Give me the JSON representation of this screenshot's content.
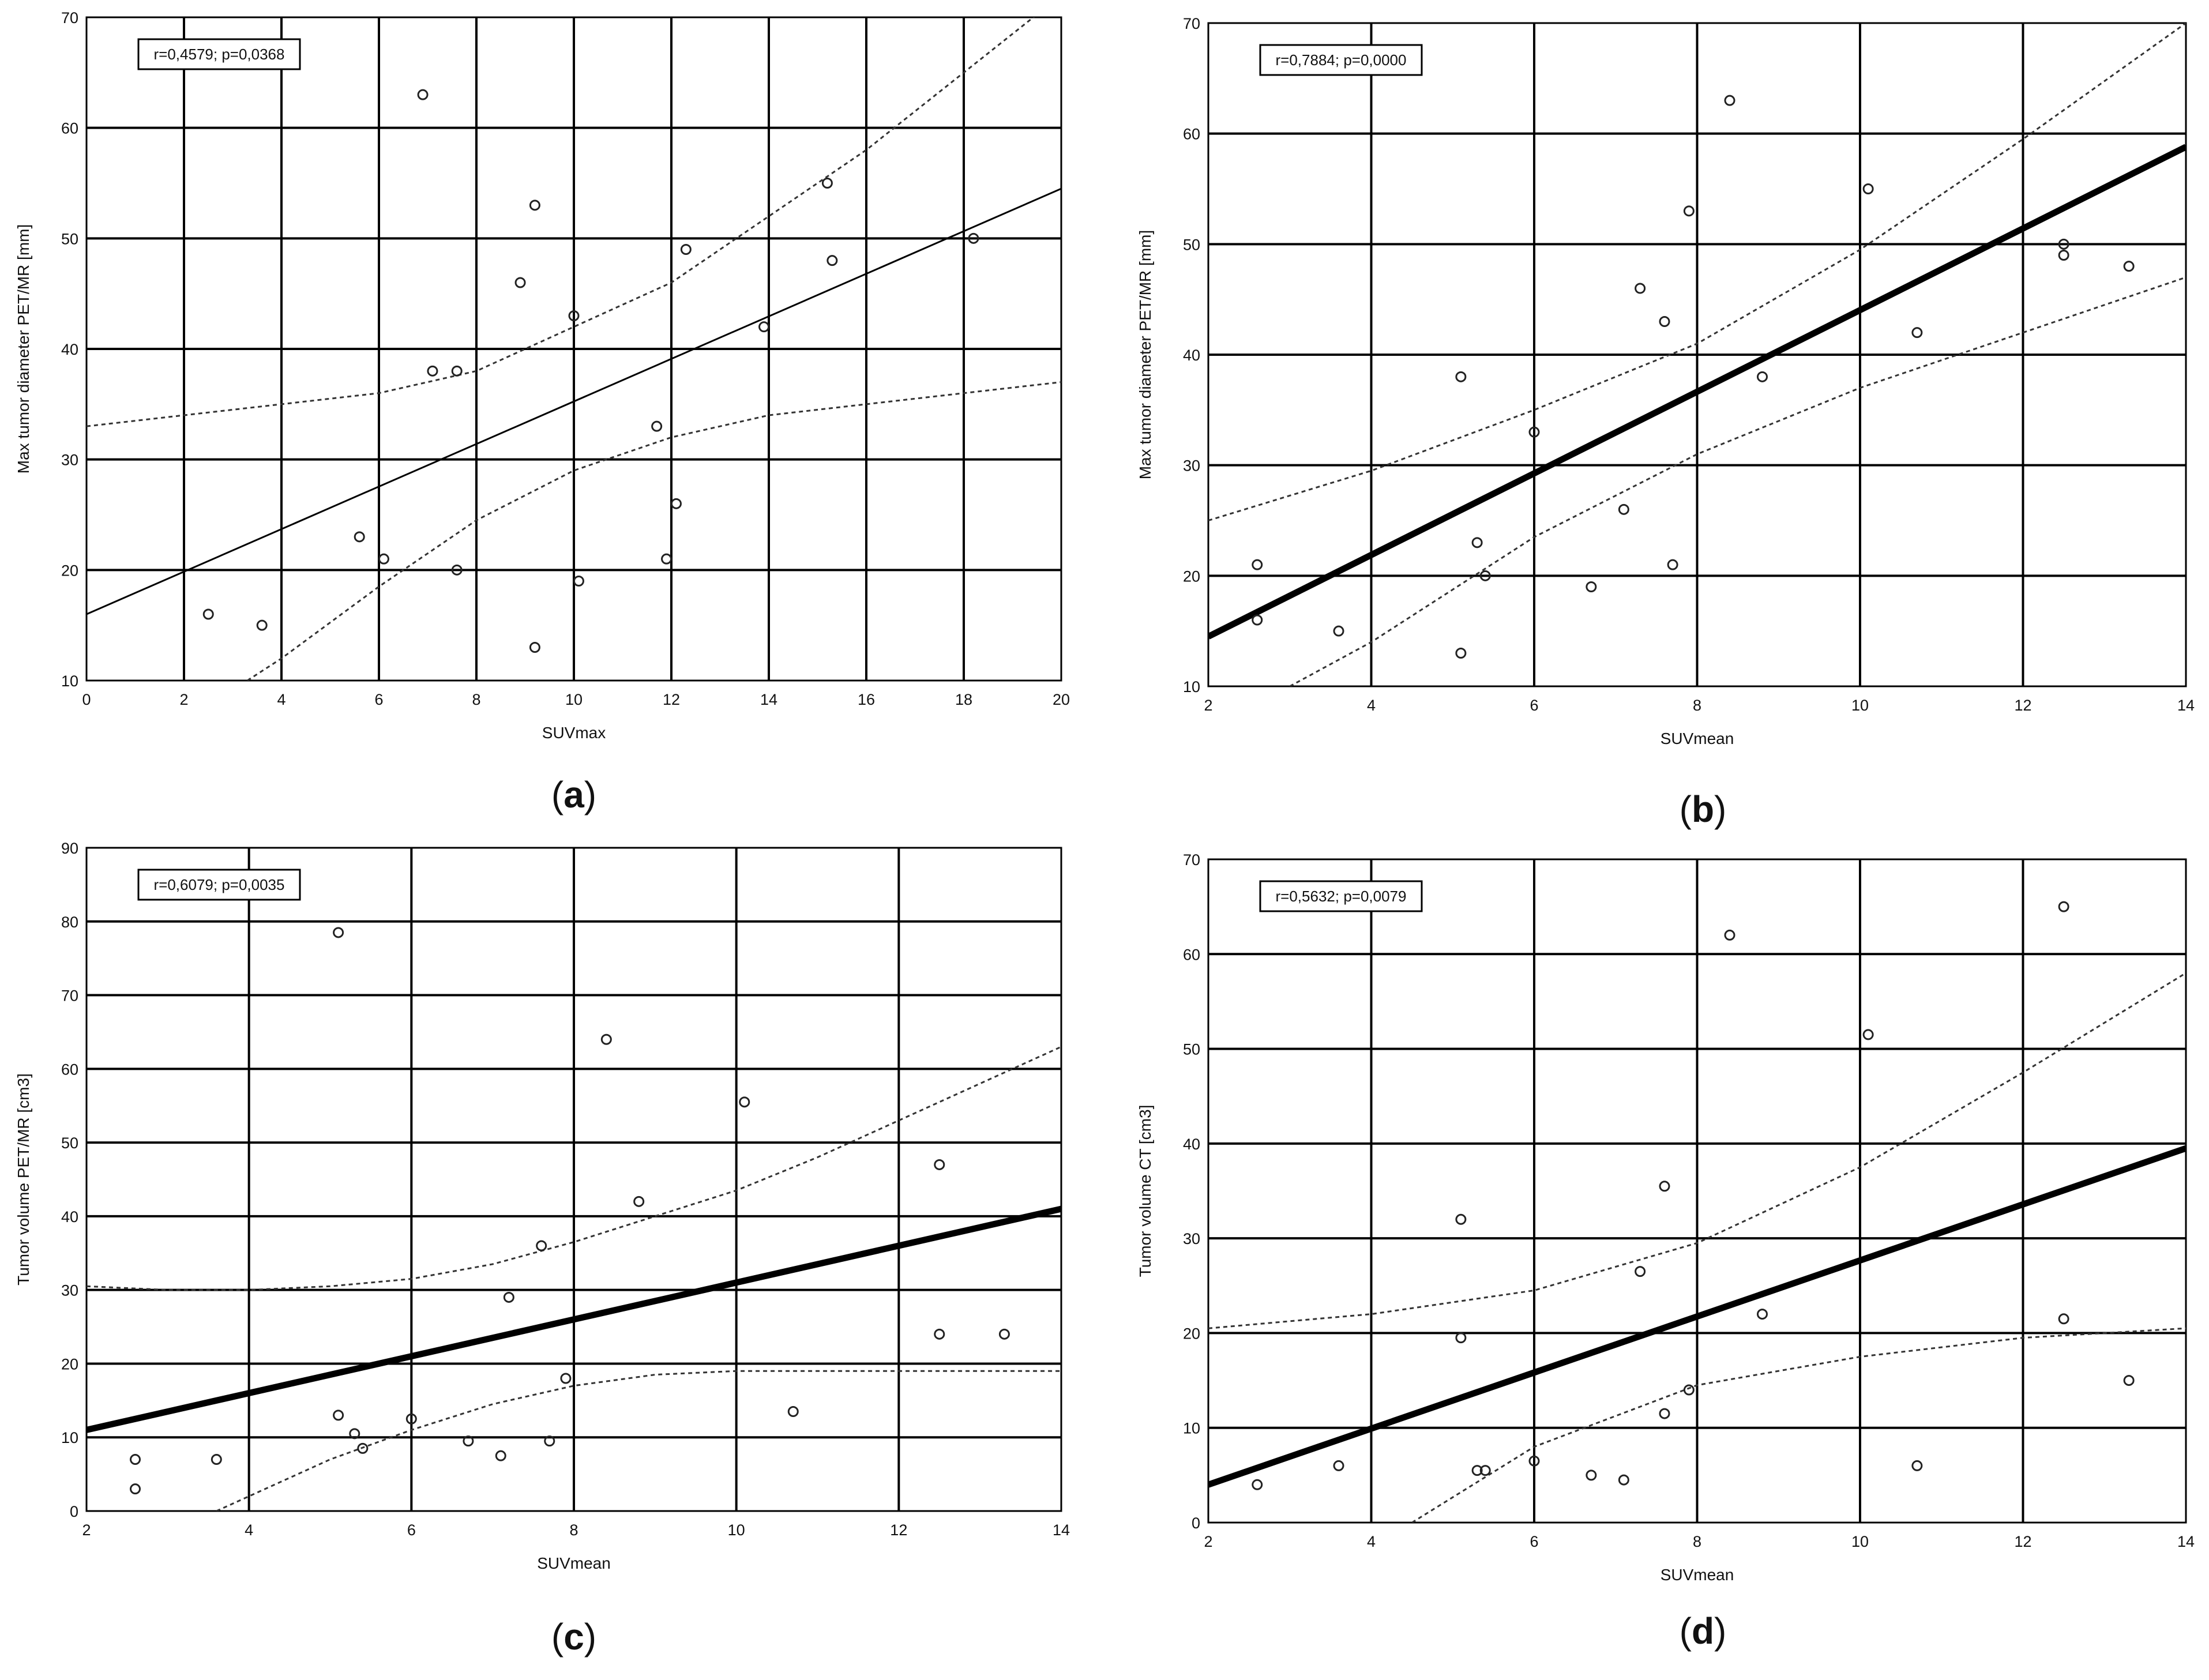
{
  "chart_data": [
    {
      "id": "a",
      "type": "scatter",
      "caption": "a",
      "annotation": "r=0,4579; p=0,0368",
      "xlabel": "SUVmax",
      "ylabel": "Max tumor diameter PET/MR [mm]",
      "xlim": [
        0,
        20
      ],
      "ylim": [
        10,
        70
      ],
      "x_ticks": [
        0,
        2,
        4,
        6,
        8,
        10,
        12,
        14,
        16,
        18,
        20
      ],
      "y_ticks": [
        10,
        20,
        30,
        40,
        50,
        60,
        70
      ],
      "grid": true,
      "points": [
        [
          2.5,
          16
        ],
        [
          3.6,
          15
        ],
        [
          5.6,
          23
        ],
        [
          6.1,
          21
        ],
        [
          6.9,
          63
        ],
        [
          7.1,
          38
        ],
        [
          7.6,
          38
        ],
        [
          7.6,
          20
        ],
        [
          8.9,
          46
        ],
        [
          9.2,
          53
        ],
        [
          9.2,
          13
        ],
        [
          10.0,
          43
        ],
        [
          10.1,
          19
        ],
        [
          11.7,
          33
        ],
        [
          11.9,
          21
        ],
        [
          12.1,
          26
        ],
        [
          12.3,
          49
        ],
        [
          13.9,
          42
        ],
        [
          15.2,
          55
        ],
        [
          15.3,
          48
        ],
        [
          18.2,
          50
        ]
      ],
      "fit_line": {
        "x": [
          0,
          20
        ],
        "y": [
          16.0,
          54.5
        ],
        "style": "thin"
      },
      "ci_upper": {
        "x": [
          0,
          2,
          4,
          6,
          8,
          10,
          12,
          14,
          16,
          18,
          20
        ],
        "y": [
          33.0,
          34.0,
          35.0,
          36.0,
          38.0,
          42.0,
          46.0,
          52.0,
          58.0,
          65.0,
          72.0
        ]
      },
      "ci_lower": {
        "x": [
          3.3,
          4,
          6,
          8,
          10,
          12,
          14,
          16,
          18,
          20
        ],
        "y": [
          10.0,
          12.0,
          18.5,
          24.5,
          29.0,
          32.0,
          34.0,
          35.0,
          36.0,
          37.0
        ]
      }
    },
    {
      "id": "b",
      "type": "scatter",
      "caption": "b",
      "annotation": "r=0,7884; p=0,0000",
      "xlabel": "SUVmean",
      "ylabel": "Max tumor diameter PET/MR [mm]",
      "xlim": [
        2,
        14
      ],
      "ylim": [
        10,
        70
      ],
      "x_ticks": [
        2,
        4,
        6,
        8,
        10,
        12,
        14
      ],
      "y_ticks": [
        10,
        20,
        30,
        40,
        50,
        60,
        70
      ],
      "grid": true,
      "points": [
        [
          2.6,
          21
        ],
        [
          2.6,
          16
        ],
        [
          3.6,
          15
        ],
        [
          5.1,
          38
        ],
        [
          5.1,
          13
        ],
        [
          5.3,
          23
        ],
        [
          5.4,
          20
        ],
        [
          6.0,
          33
        ],
        [
          6.7,
          19
        ],
        [
          7.1,
          26
        ],
        [
          7.3,
          46
        ],
        [
          7.6,
          43
        ],
        [
          7.7,
          21
        ],
        [
          7.9,
          53
        ],
        [
          8.4,
          63
        ],
        [
          8.8,
          38
        ],
        [
          10.1,
          55
        ],
        [
          10.7,
          42
        ],
        [
          12.5,
          50
        ],
        [
          12.5,
          49
        ],
        [
          13.3,
          48
        ]
      ],
      "fit_line": {
        "x": [
          2,
          14
        ],
        "y": [
          14.5,
          58.8
        ],
        "style": "thick"
      },
      "ci_upper": {
        "x": [
          2,
          4,
          6,
          8,
          10,
          12,
          14
        ],
        "y": [
          25.0,
          29.5,
          35.0,
          41.0,
          49.5,
          59.5,
          70.0
        ]
      },
      "ci_lower": {
        "x": [
          3.0,
          4,
          6,
          8,
          10,
          12,
          14
        ],
        "y": [
          10.0,
          14.0,
          23.5,
          31.0,
          37.0,
          42.0,
          47.0
        ]
      }
    },
    {
      "id": "c",
      "type": "scatter",
      "caption": "c",
      "annotation": "r=0,6079; p=0,0035",
      "xlabel": "SUVmean",
      "ylabel": "Tumor volume PET/MR [cm3]",
      "xlim": [
        2,
        14
      ],
      "ylim": [
        0,
        90
      ],
      "x_ticks": [
        2,
        4,
        6,
        8,
        10,
        12,
        14
      ],
      "y_ticks": [
        0,
        10,
        20,
        30,
        40,
        50,
        60,
        70,
        80,
        90
      ],
      "grid": true,
      "points": [
        [
          2.6,
          7
        ],
        [
          2.6,
          3
        ],
        [
          3.6,
          7
        ],
        [
          5.1,
          78.5
        ],
        [
          5.1,
          13
        ],
        [
          5.3,
          10.5
        ],
        [
          5.4,
          8.5
        ],
        [
          6.0,
          12.5
        ],
        [
          6.7,
          9.5
        ],
        [
          7.1,
          7.5
        ],
        [
          7.2,
          29
        ],
        [
          7.6,
          36
        ],
        [
          7.7,
          9.5
        ],
        [
          7.9,
          18
        ],
        [
          8.4,
          64
        ],
        [
          8.8,
          42
        ],
        [
          10.1,
          55.5
        ],
        [
          10.7,
          13.5
        ],
        [
          12.5,
          47
        ],
        [
          12.5,
          24
        ],
        [
          13.3,
          24
        ]
      ],
      "fit_line": {
        "x": [
          2,
          14
        ],
        "y": [
          11.0,
          41.0
        ],
        "style": "thick"
      },
      "ci_upper": {
        "x": [
          2,
          3,
          4,
          5,
          6,
          7,
          8,
          9,
          10,
          11,
          12,
          13,
          14
        ],
        "y": [
          30.5,
          30.0,
          30.0,
          30.5,
          31.5,
          33.5,
          36.5,
          40.0,
          43.5,
          48.0,
          53.0,
          58.0,
          63.0
        ]
      },
      "ci_lower": {
        "x": [
          3.6,
          4,
          5,
          6,
          7,
          8,
          9,
          10,
          11,
          12,
          13,
          14
        ],
        "y": [
          0.0,
          2.0,
          7.0,
          11.0,
          14.5,
          17.0,
          18.5,
          19.0,
          19.0,
          19.0,
          19.0,
          19.0
        ]
      }
    },
    {
      "id": "d",
      "type": "scatter",
      "caption": "d",
      "annotation": "r=0,5632; p=0,0079",
      "xlabel": "SUVmean",
      "ylabel": "Tumor volume CT [cm3]",
      "xlim": [
        2,
        14
      ],
      "ylim": [
        0,
        70
      ],
      "x_ticks": [
        2,
        4,
        6,
        8,
        10,
        12,
        14
      ],
      "y_ticks": [
        0,
        10,
        20,
        30,
        40,
        50,
        60,
        70
      ],
      "grid": true,
      "points": [
        [
          2.6,
          4
        ],
        [
          3.6,
          6
        ],
        [
          5.1,
          32
        ],
        [
          5.1,
          19.5
        ],
        [
          5.3,
          5.5
        ],
        [
          5.4,
          5.5
        ],
        [
          6.0,
          6.5
        ],
        [
          6.7,
          5
        ],
        [
          7.1,
          4.5
        ],
        [
          7.3,
          26.5
        ],
        [
          7.6,
          35.5
        ],
        [
          7.6,
          11.5
        ],
        [
          7.9,
          14
        ],
        [
          8.4,
          62
        ],
        [
          8.8,
          22
        ],
        [
          10.1,
          51.5
        ],
        [
          10.7,
          6
        ],
        [
          12.5,
          65
        ],
        [
          12.5,
          21.5
        ],
        [
          13.3,
          15
        ]
      ],
      "fit_line": {
        "x": [
          2,
          14
        ],
        "y": [
          4.0,
          39.5
        ],
        "style": "thick"
      },
      "ci_upper": {
        "x": [
          2,
          4,
          6,
          8,
          10,
          12,
          14
        ],
        "y": [
          20.5,
          22.0,
          24.5,
          29.5,
          37.5,
          47.5,
          58.0
        ]
      },
      "ci_lower": {
        "x": [
          4.5,
          6,
          8,
          10,
          12,
          14
        ],
        "y": [
          0.0,
          8.0,
          14.5,
          17.5,
          19.5,
          20.5
        ]
      }
    }
  ]
}
